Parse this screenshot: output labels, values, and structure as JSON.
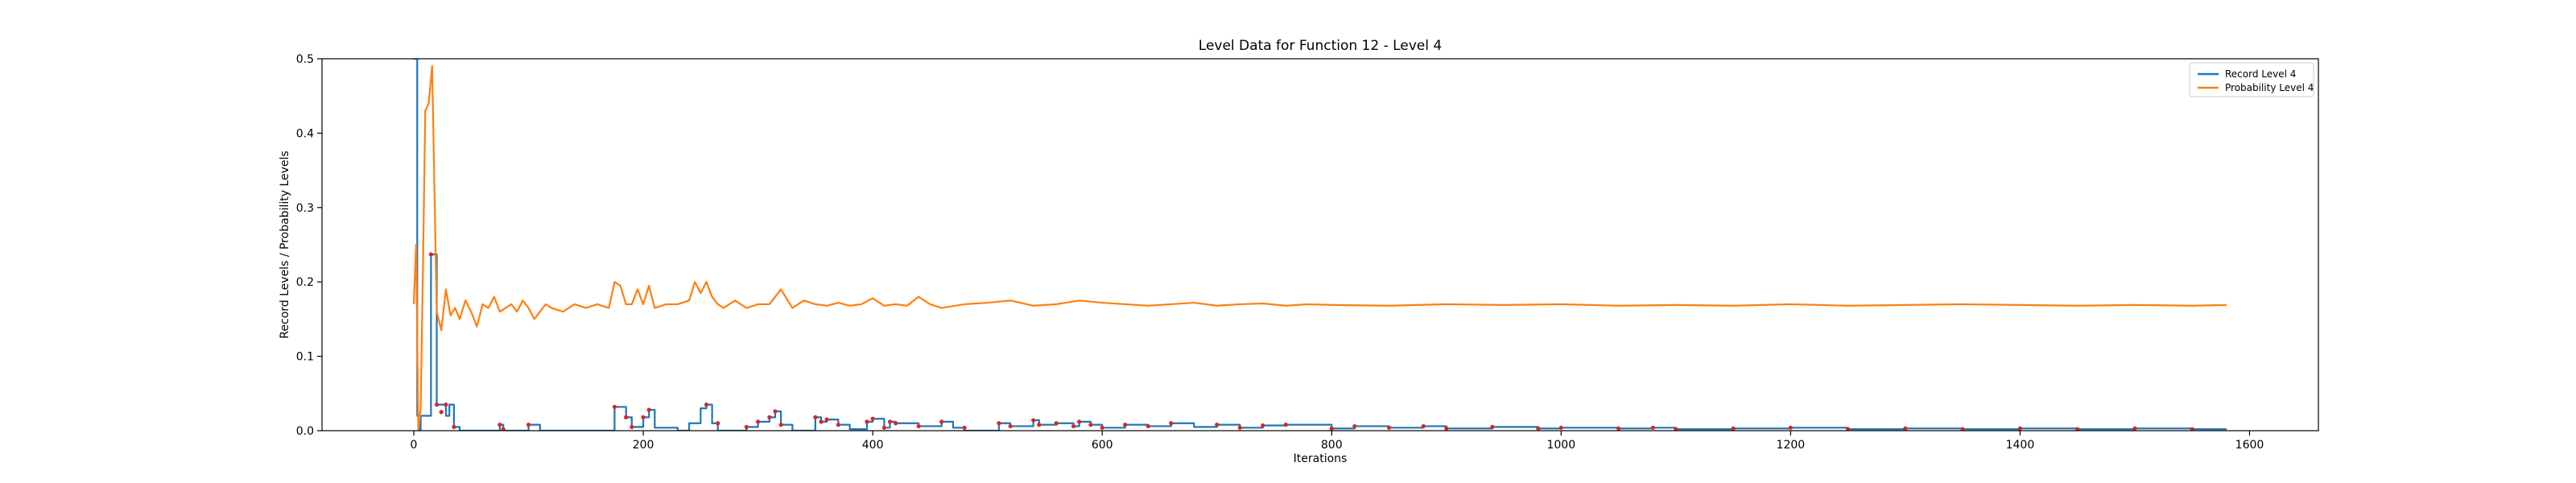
{
  "chart_data": {
    "type": "line",
    "title": "Level Data for Function 12 - Level 4",
    "xlabel": "Iterations",
    "ylabel": "Record Levels / Probability Levels",
    "xlim": [
      -80,
      1660
    ],
    "ylim": [
      0,
      0.5
    ],
    "xticks": [
      0,
      200,
      400,
      600,
      800,
      1000,
      1200,
      1400,
      1600
    ],
    "yticks": [
      0.0,
      0.1,
      0.2,
      0.3,
      0.4,
      0.5
    ],
    "ytick_labels": [
      "0.0",
      "0.1",
      "0.2",
      "0.3",
      "0.4",
      "0.5"
    ],
    "grid": false,
    "legend_position": "top-right",
    "series": [
      {
        "name": "Record Level 4",
        "color": "#1f77b4",
        "style": "step",
        "x": [
          0,
          2,
          3,
          5,
          6,
          10,
          15,
          20,
          24,
          28,
          31,
          35,
          40,
          60,
          75,
          78,
          100,
          110,
          160,
          175,
          185,
          190,
          200,
          205,
          210,
          230,
          240,
          250,
          255,
          260,
          265,
          290,
          300,
          310,
          315,
          320,
          330,
          350,
          355,
          360,
          370,
          380,
          395,
          400,
          410,
          415,
          420,
          440,
          460,
          470,
          480,
          510,
          520,
          540,
          545,
          560,
          575,
          580,
          590,
          600,
          620,
          640,
          660,
          680,
          700,
          720,
          740,
          760,
          800,
          820,
          850,
          880,
          900,
          940,
          980,
          1000,
          1050,
          1080,
          1100,
          1150,
          1200,
          1250,
          1300,
          1350,
          1400,
          1450,
          1500,
          1550,
          1580
        ],
        "y": [
          0.5,
          0.5,
          0.02,
          0.0,
          0.02,
          0.02,
          0.237,
          0.035,
          0.035,
          0.02,
          0.035,
          0.005,
          0.0,
          0.0,
          0.008,
          0.0,
          0.008,
          0.0,
          0.0,
          0.032,
          0.018,
          0.005,
          0.018,
          0.028,
          0.004,
          0.0,
          0.01,
          0.03,
          0.035,
          0.01,
          0.0,
          0.005,
          0.012,
          0.018,
          0.026,
          0.008,
          0.0,
          0.018,
          0.012,
          0.015,
          0.008,
          0.002,
          0.012,
          0.016,
          0.004,
          0.012,
          0.01,
          0.006,
          0.012,
          0.004,
          0.0,
          0.01,
          0.006,
          0.014,
          0.008,
          0.01,
          0.006,
          0.012,
          0.008,
          0.004,
          0.008,
          0.006,
          0.01,
          0.005,
          0.008,
          0.004,
          0.007,
          0.008,
          0.003,
          0.006,
          0.004,
          0.006,
          0.003,
          0.005,
          0.003,
          0.004,
          0.003,
          0.004,
          0.002,
          0.003,
          0.004,
          0.002,
          0.003,
          0.002,
          0.003,
          0.002,
          0.003,
          0.002,
          0.002
        ]
      },
      {
        "name": "Probability Level 4",
        "color": "#ff7f0e",
        "style": "line",
        "x": [
          0,
          2,
          4,
          6,
          8,
          10,
          13,
          16,
          20,
          24,
          28,
          32,
          36,
          40,
          45,
          50,
          55,
          60,
          65,
          70,
          75,
          80,
          85,
          90,
          95,
          100,
          105,
          110,
          115,
          120,
          130,
          140,
          150,
          160,
          170,
          175,
          180,
          185,
          190,
          195,
          200,
          205,
          210,
          220,
          230,
          240,
          245,
          250,
          255,
          260,
          265,
          270,
          280,
          290,
          300,
          310,
          320,
          330,
          340,
          350,
          360,
          370,
          380,
          390,
          400,
          410,
          420,
          430,
          440,
          450,
          460,
          480,
          500,
          520,
          540,
          560,
          580,
          600,
          620,
          640,
          660,
          680,
          700,
          720,
          740,
          760,
          780,
          800,
          850,
          900,
          950,
          1000,
          1050,
          1100,
          1150,
          1200,
          1250,
          1300,
          1350,
          1400,
          1450,
          1500,
          1550,
          1580
        ],
        "y": [
          0.17,
          0.25,
          0.0,
          0.03,
          0.22,
          0.43,
          0.44,
          0.49,
          0.16,
          0.135,
          0.19,
          0.155,
          0.165,
          0.15,
          0.175,
          0.16,
          0.14,
          0.17,
          0.165,
          0.18,
          0.16,
          0.165,
          0.17,
          0.16,
          0.175,
          0.165,
          0.15,
          0.16,
          0.17,
          0.165,
          0.16,
          0.17,
          0.165,
          0.17,
          0.165,
          0.2,
          0.195,
          0.17,
          0.17,
          0.19,
          0.17,
          0.195,
          0.165,
          0.17,
          0.17,
          0.175,
          0.2,
          0.185,
          0.2,
          0.18,
          0.17,
          0.165,
          0.175,
          0.165,
          0.17,
          0.17,
          0.19,
          0.165,
          0.175,
          0.17,
          0.168,
          0.172,
          0.168,
          0.17,
          0.178,
          0.168,
          0.17,
          0.168,
          0.18,
          0.17,
          0.165,
          0.17,
          0.172,
          0.175,
          0.168,
          0.17,
          0.175,
          0.172,
          0.17,
          0.168,
          0.17,
          0.172,
          0.168,
          0.17,
          0.171,
          0.168,
          0.17,
          0.169,
          0.168,
          0.17,
          0.169,
          0.17,
          0.168,
          0.169,
          0.168,
          0.17,
          0.168,
          0.169,
          0.17,
          0.169,
          0.168,
          0.169,
          0.168,
          0.169
        ]
      }
    ],
    "markers": {
      "color": "#d62728",
      "x": [
        15,
        20,
        24,
        28,
        35,
        75,
        78,
        100,
        175,
        185,
        190,
        200,
        205,
        255,
        265,
        290,
        300,
        310,
        315,
        320,
        350,
        355,
        360,
        370,
        395,
        400,
        410,
        415,
        420,
        440,
        460,
        480,
        510,
        520,
        540,
        545,
        560,
        575,
        580,
        590,
        600,
        620,
        640,
        660,
        700,
        720,
        740,
        760,
        800,
        820,
        850,
        880,
        900,
        940,
        980,
        1000,
        1050,
        1080,
        1100,
        1150,
        1200,
        1250,
        1300,
        1350,
        1400,
        1450,
        1500,
        1550
      ],
      "y": [
        0.237,
        0.035,
        0.025,
        0.035,
        0.005,
        0.008,
        0.002,
        0.008,
        0.032,
        0.018,
        0.005,
        0.018,
        0.028,
        0.035,
        0.01,
        0.005,
        0.012,
        0.018,
        0.026,
        0.008,
        0.018,
        0.012,
        0.015,
        0.008,
        0.012,
        0.016,
        0.004,
        0.012,
        0.01,
        0.006,
        0.012,
        0.004,
        0.01,
        0.006,
        0.014,
        0.008,
        0.01,
        0.006,
        0.012,
        0.008,
        0.004,
        0.008,
        0.006,
        0.01,
        0.008,
        0.004,
        0.007,
        0.008,
        0.003,
        0.006,
        0.004,
        0.006,
        0.003,
        0.005,
        0.003,
        0.004,
        0.003,
        0.004,
        0.002,
        0.003,
        0.004,
        0.002,
        0.003,
        0.002,
        0.003,
        0.002,
        0.003,
        0.002
      ]
    }
  }
}
